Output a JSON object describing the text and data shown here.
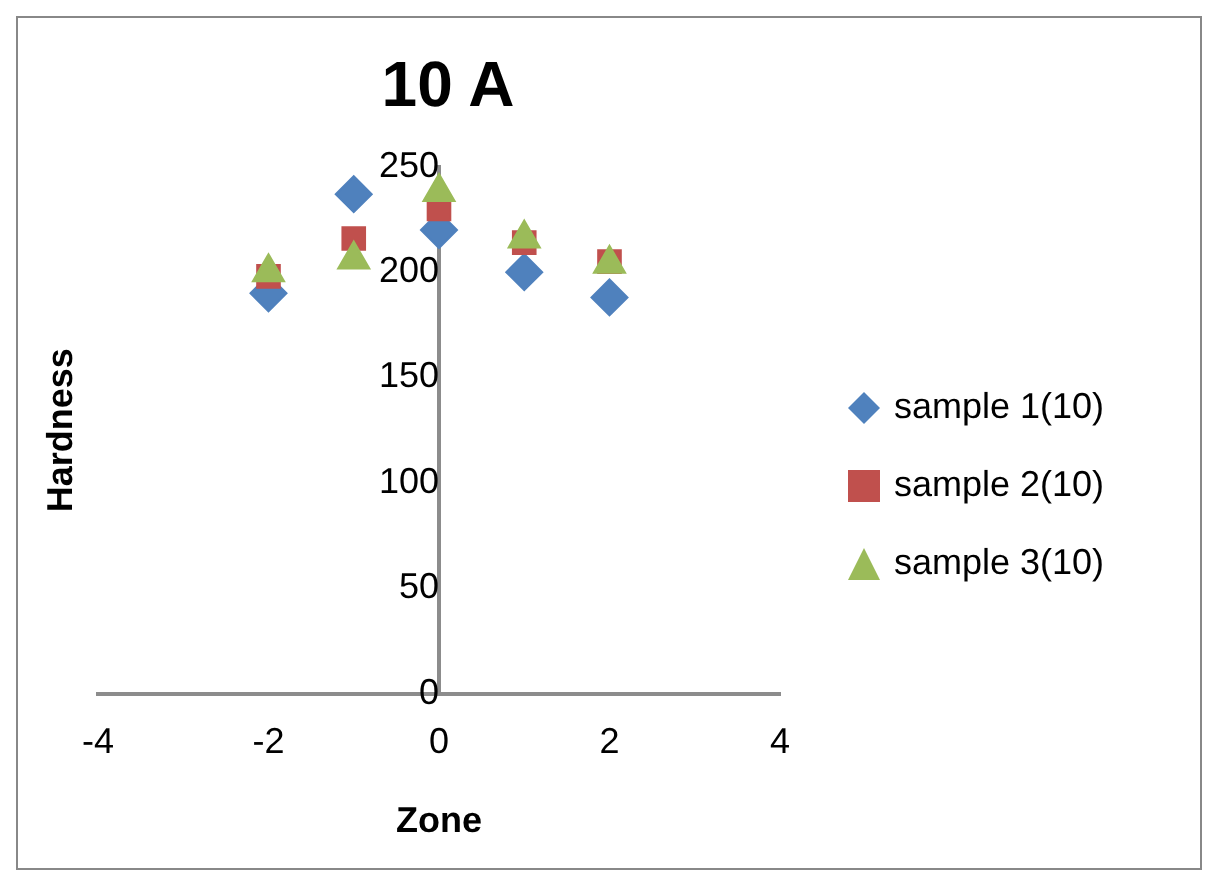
{
  "chart_data": {
    "type": "scatter",
    "title": "10 A",
    "xlabel": "Zone",
    "ylabel": "Hardness",
    "series": [
      {
        "name": "sample 1(10)",
        "color": "#4f81bd",
        "marker": "diamond",
        "x": [
          -2,
          -1,
          0,
          1,
          2
        ],
        "values": [
          190,
          237,
          220,
          200,
          188
        ]
      },
      {
        "name": "sample 2(10)",
        "color": "#c0504d",
        "marker": "square",
        "x": [
          -2,
          -1,
          0,
          1,
          2
        ],
        "values": [
          198,
          216,
          230,
          214,
          205
        ]
      },
      {
        "name": "sample 3(10)",
        "color": "#9bbb59",
        "marker": "triangle",
        "x": [
          -2,
          -1,
          0,
          1,
          2
        ],
        "values": [
          200,
          206,
          238,
          216,
          204
        ]
      }
    ],
    "xlim": [
      -4,
      4
    ],
    "xticks": [
      -4,
      -2,
      0,
      2,
      4
    ],
    "ylim": [
      0,
      250
    ],
    "yticks": [
      0,
      50,
      100,
      150,
      200,
      250
    ],
    "grid": false,
    "legend": "right"
  }
}
